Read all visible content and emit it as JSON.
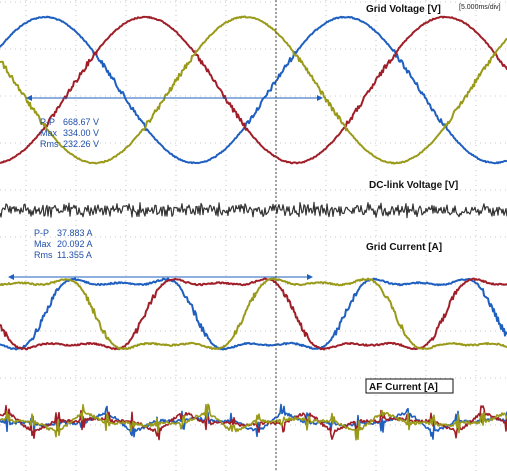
{
  "chart_data": {
    "type": "line",
    "timebase": "[5.000ms/div]",
    "panels": [
      {
        "id": "grid-voltage",
        "label": "Grid Voltage [V]",
        "series": [
          {
            "color": "#1f5fbf",
            "amplitude": 334.0,
            "phase_deg": 0
          },
          {
            "color": "#a01e28",
            "amplitude": 334.0,
            "phase_deg": -120
          },
          {
            "color": "#9a9a1a",
            "amplitude": 334.0,
            "phase_deg": 120
          }
        ],
        "measurements": {
          "pp_label": "P-P",
          "pp_value": "668.67 V",
          "max_label": "Max",
          "max_value": "334.00 V",
          "rms_label": "Rms",
          "rms_value": "232.26 V"
        }
      },
      {
        "id": "dc-link-voltage",
        "label": "DC-link Voltage [V]",
        "series": [
          {
            "color": "#333333"
          }
        ]
      },
      {
        "id": "grid-current",
        "label": "Grid Current [A]",
        "series": [
          {
            "color": "#1f5fbf",
            "phase_deg": 0
          },
          {
            "color": "#a01e28",
            "phase_deg": -120
          },
          {
            "color": "#9a9a1a",
            "phase_deg": 120
          }
        ],
        "measurements": {
          "pp_label": "P-P",
          "pp_value": "37.883 A",
          "max_label": "Max",
          "max_value": "20.092 A",
          "rms_label": "Rms",
          "rms_value": "11.355 A"
        }
      },
      {
        "id": "af-current",
        "label": "AF Current [A]",
        "series": [
          {
            "color": "#1f5fbf"
          },
          {
            "color": "#a01e28"
          },
          {
            "color": "#9a9a1a"
          }
        ]
      }
    ],
    "grid": true,
    "colors": {
      "accent": "#1f5fbf",
      "cursor": "#555555",
      "grid": "#b8b8b8"
    }
  }
}
